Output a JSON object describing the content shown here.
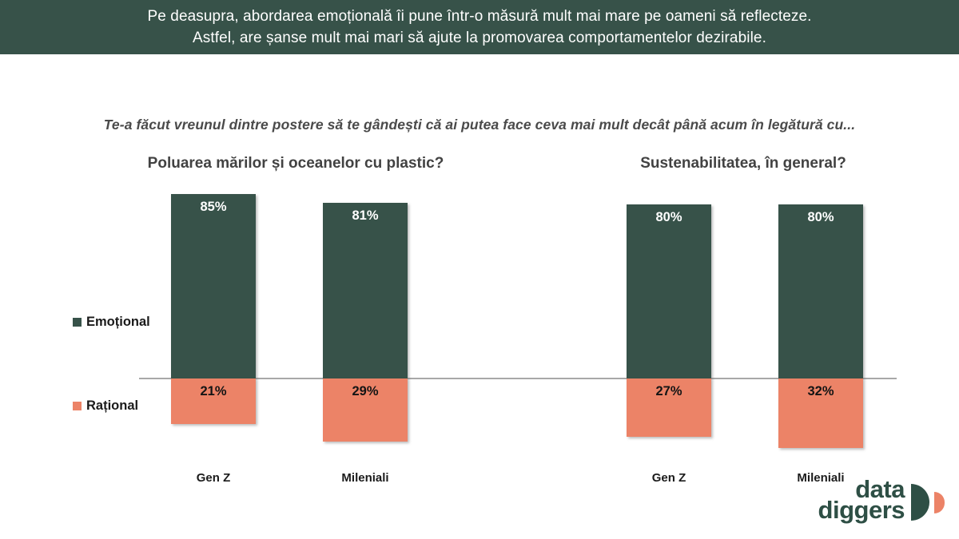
{
  "header": {
    "line1": "Pe deasupra, abordarea emoțională îi pune într-o măsură mult mai mare pe oameni să reflecteze.",
    "line2": "Astfel, are șanse mult mai mari să ajute la promovarea comportamentelor dezirabile.",
    "bg_color": "#375249",
    "text_color": "#ffffff"
  },
  "question": "Te-a făcut vreunul dintre postere să te gândești că ai putea face ceva mai mult decât până acum în legătură cu...",
  "legend": [
    {
      "label": "Emoțional",
      "color": "#375249"
    },
    {
      "label": "Rațional",
      "color": "#ec8367"
    }
  ],
  "chart_data": {
    "type": "bar",
    "subtype": "diverging-stacked",
    "value_format": "percent",
    "baseline_color": "#a8a8a8",
    "grid": false,
    "legend_position": "left",
    "groups": [
      {
        "title": "Poluarea mărilor și oceanelor cu plastic?",
        "categories": [
          "Gen Z",
          "Mileniali"
        ],
        "series": [
          {
            "name": "Emoțional",
            "direction": "up",
            "color": "#375249",
            "values": [
              85,
              81
            ]
          },
          {
            "name": "Rațional",
            "direction": "down",
            "color": "#ec8367",
            "values": [
              21,
              29
            ]
          }
        ]
      },
      {
        "title": "Sustenabilitatea, în general?",
        "categories": [
          "Gen Z",
          "Mileniali"
        ],
        "series": [
          {
            "name": "Emoțional",
            "direction": "up",
            "color": "#375249",
            "values": [
              80,
              80
            ]
          },
          {
            "name": "Rațional",
            "direction": "down",
            "color": "#ec8367",
            "values": [
              27,
              32
            ]
          }
        ]
      }
    ]
  },
  "logo": {
    "line1": "data",
    "line2": "diggers",
    "color": "#2e4f45",
    "accent_color": "#ec8367"
  }
}
